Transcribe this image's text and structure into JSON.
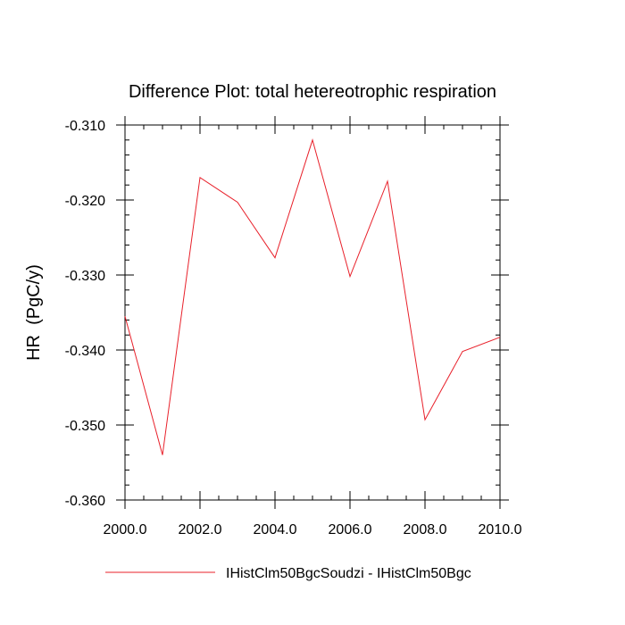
{
  "chart_data": {
    "type": "line",
    "title": "Difference Plot: total hetereotrophic respiration",
    "xlabel": "",
    "ylabel": "HR  (PgC/y)",
    "xlim": [
      2000,
      2010
    ],
    "ylim": [
      -0.36,
      -0.31
    ],
    "x_ticks": [
      2000,
      2002,
      2004,
      2006,
      2008,
      2010
    ],
    "x_tick_labels": [
      "2000.0",
      "2002.0",
      "2004.0",
      "2006.0",
      "2008.0",
      "2010.0"
    ],
    "y_ticks": [
      -0.31,
      -0.32,
      -0.33,
      -0.34,
      -0.35,
      -0.36
    ],
    "y_tick_labels": [
      "-0.310",
      "-0.320",
      "-0.330",
      "-0.340",
      "-0.350",
      "-0.360"
    ],
    "grid": false,
    "legend_position": "bottom",
    "series": [
      {
        "name": "IHistClm50BgcSoudzi - IHistClm50Bgc",
        "color": "#e8202a",
        "x": [
          2000,
          2001,
          2002,
          2003,
          2004,
          2005,
          2006,
          2007,
          2008,
          2009,
          2010
        ],
        "y": [
          -0.3355,
          -0.354,
          -0.317,
          -0.3203,
          -0.3277,
          -0.312,
          -0.3302,
          -0.3175,
          -0.3493,
          -0.3402,
          -0.3383
        ]
      }
    ]
  }
}
